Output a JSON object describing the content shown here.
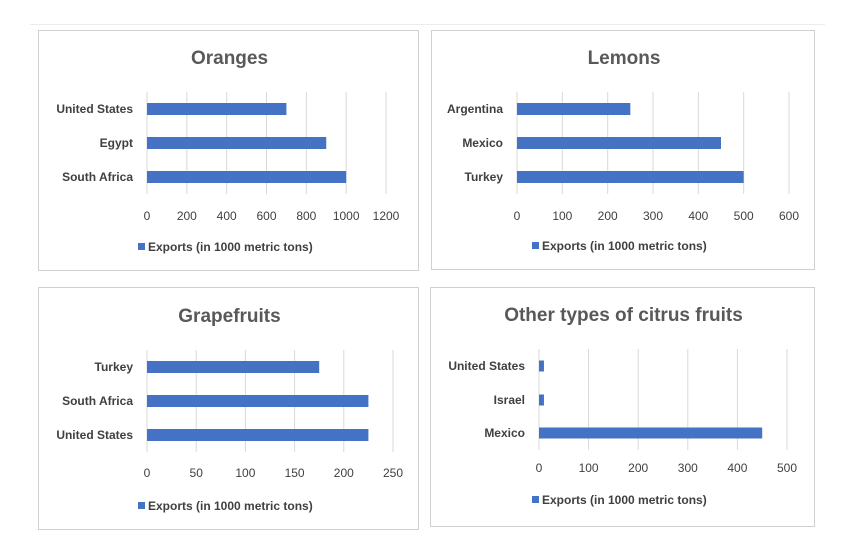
{
  "colors": {
    "bar": "#4472c4",
    "grid": "#d9d9d9",
    "text": "#404040",
    "title": "#595959"
  },
  "chart_data": [
    {
      "type": "bar",
      "orientation": "horizontal",
      "title": "Oranges",
      "categories": [
        "United States",
        "Egypt",
        "South Africa"
      ],
      "series": [
        {
          "name": "Exports (in 1000 metric tons)",
          "values": [
            700,
            900,
            1000
          ]
        }
      ],
      "xlim": [
        0,
        1200
      ],
      "xticks": [
        0,
        200,
        400,
        600,
        800,
        1000,
        1200
      ],
      "grid": true,
      "legend": "bottom"
    },
    {
      "type": "bar",
      "orientation": "horizontal",
      "title": "Lemons",
      "categories": [
        "Argentina",
        "Mexico",
        "Turkey"
      ],
      "series": [
        {
          "name": "Exports (in 1000 metric tons)",
          "values": [
            250,
            450,
            500
          ]
        }
      ],
      "xlim": [
        0,
        600
      ],
      "xticks": [
        0,
        100,
        200,
        300,
        400,
        500,
        600
      ],
      "grid": true,
      "legend": "bottom"
    },
    {
      "type": "bar",
      "orientation": "horizontal",
      "title": "Grapefruits",
      "categories": [
        "Turkey",
        "South Africa",
        "United States"
      ],
      "series": [
        {
          "name": "Exports (in 1000 metric tons)",
          "values": [
            175,
            225,
            225
          ]
        }
      ],
      "xlim": [
        0,
        250
      ],
      "xticks": [
        0,
        50,
        100,
        150,
        200,
        250
      ],
      "grid": true,
      "legend": "bottom"
    },
    {
      "type": "bar",
      "orientation": "horizontal",
      "title": "Other types of citrus fruits",
      "categories": [
        "United States",
        "Israel",
        "Mexico"
      ],
      "series": [
        {
          "name": "Exports (in 1000 metric tons)",
          "values": [
            10,
            10,
            450
          ]
        }
      ],
      "xlim": [
        0,
        500
      ],
      "xticks": [
        0,
        100,
        200,
        300,
        400,
        500
      ],
      "grid": true,
      "legend": "bottom"
    }
  ]
}
